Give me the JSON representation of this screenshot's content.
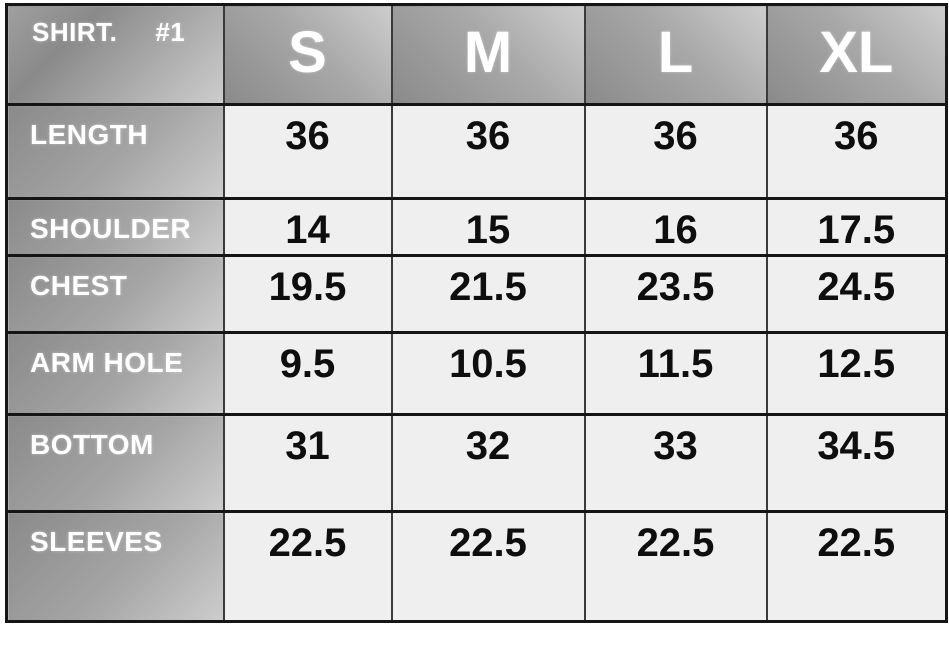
{
  "chart": {
    "title": "SHIRT.",
    "number": "#1",
    "size_headers": [
      "S",
      "M",
      "L",
      "XL"
    ],
    "rows": [
      {
        "label": "LENGTH",
        "values": [
          "36",
          "36",
          "36",
          "36"
        ]
      },
      {
        "label": "SHOULDER",
        "values": [
          "14",
          "15",
          "16",
          "17.5"
        ]
      },
      {
        "label": "CHEST",
        "values": [
          "19.5",
          "21.5",
          "23.5",
          "24.5"
        ]
      },
      {
        "label": "ARM HOLE",
        "values": [
          "9.5",
          "10.5",
          "11.5",
          "12.5"
        ]
      },
      {
        "label": "BOTTOM",
        "values": [
          "31",
          "32",
          "33",
          "34.5"
        ]
      },
      {
        "label": "SLEEVES",
        "values": [
          "22.5",
          "22.5",
          "22.5",
          "22.5"
        ]
      }
    ]
  },
  "colors": {
    "value_cell_bg": "#efefef",
    "metal_dark": "#8a8a8a",
    "metal_light": "#cdcdcd",
    "border_dark": "#151515",
    "border_mid": "#3a3a3a",
    "label_text": "#ffffff",
    "value_text": "#0e0e0e"
  },
  "chart_data": {
    "type": "table",
    "title": "SHIRT. #1",
    "columns": [
      "",
      "S",
      "M",
      "L",
      "XL"
    ],
    "rows": [
      [
        "LENGTH",
        "36",
        "36",
        "36",
        "36"
      ],
      [
        "SHOULDER",
        "14",
        "15",
        "16",
        "17.5"
      ],
      [
        "CHEST",
        "19.5",
        "21.5",
        "23.5",
        "24.5"
      ],
      [
        "ARM HOLE",
        "9.5",
        "10.5",
        "11.5",
        "12.5"
      ],
      [
        "BOTTOM",
        "31",
        "32",
        "33",
        "34.5"
      ],
      [
        "SLEEVES",
        "22.5",
        "22.5",
        "22.5",
        "22.5"
      ]
    ],
    "layout_hints": {
      "header_style": "metallic-gradient",
      "grid": true,
      "value_alignment": "center-top"
    }
  }
}
